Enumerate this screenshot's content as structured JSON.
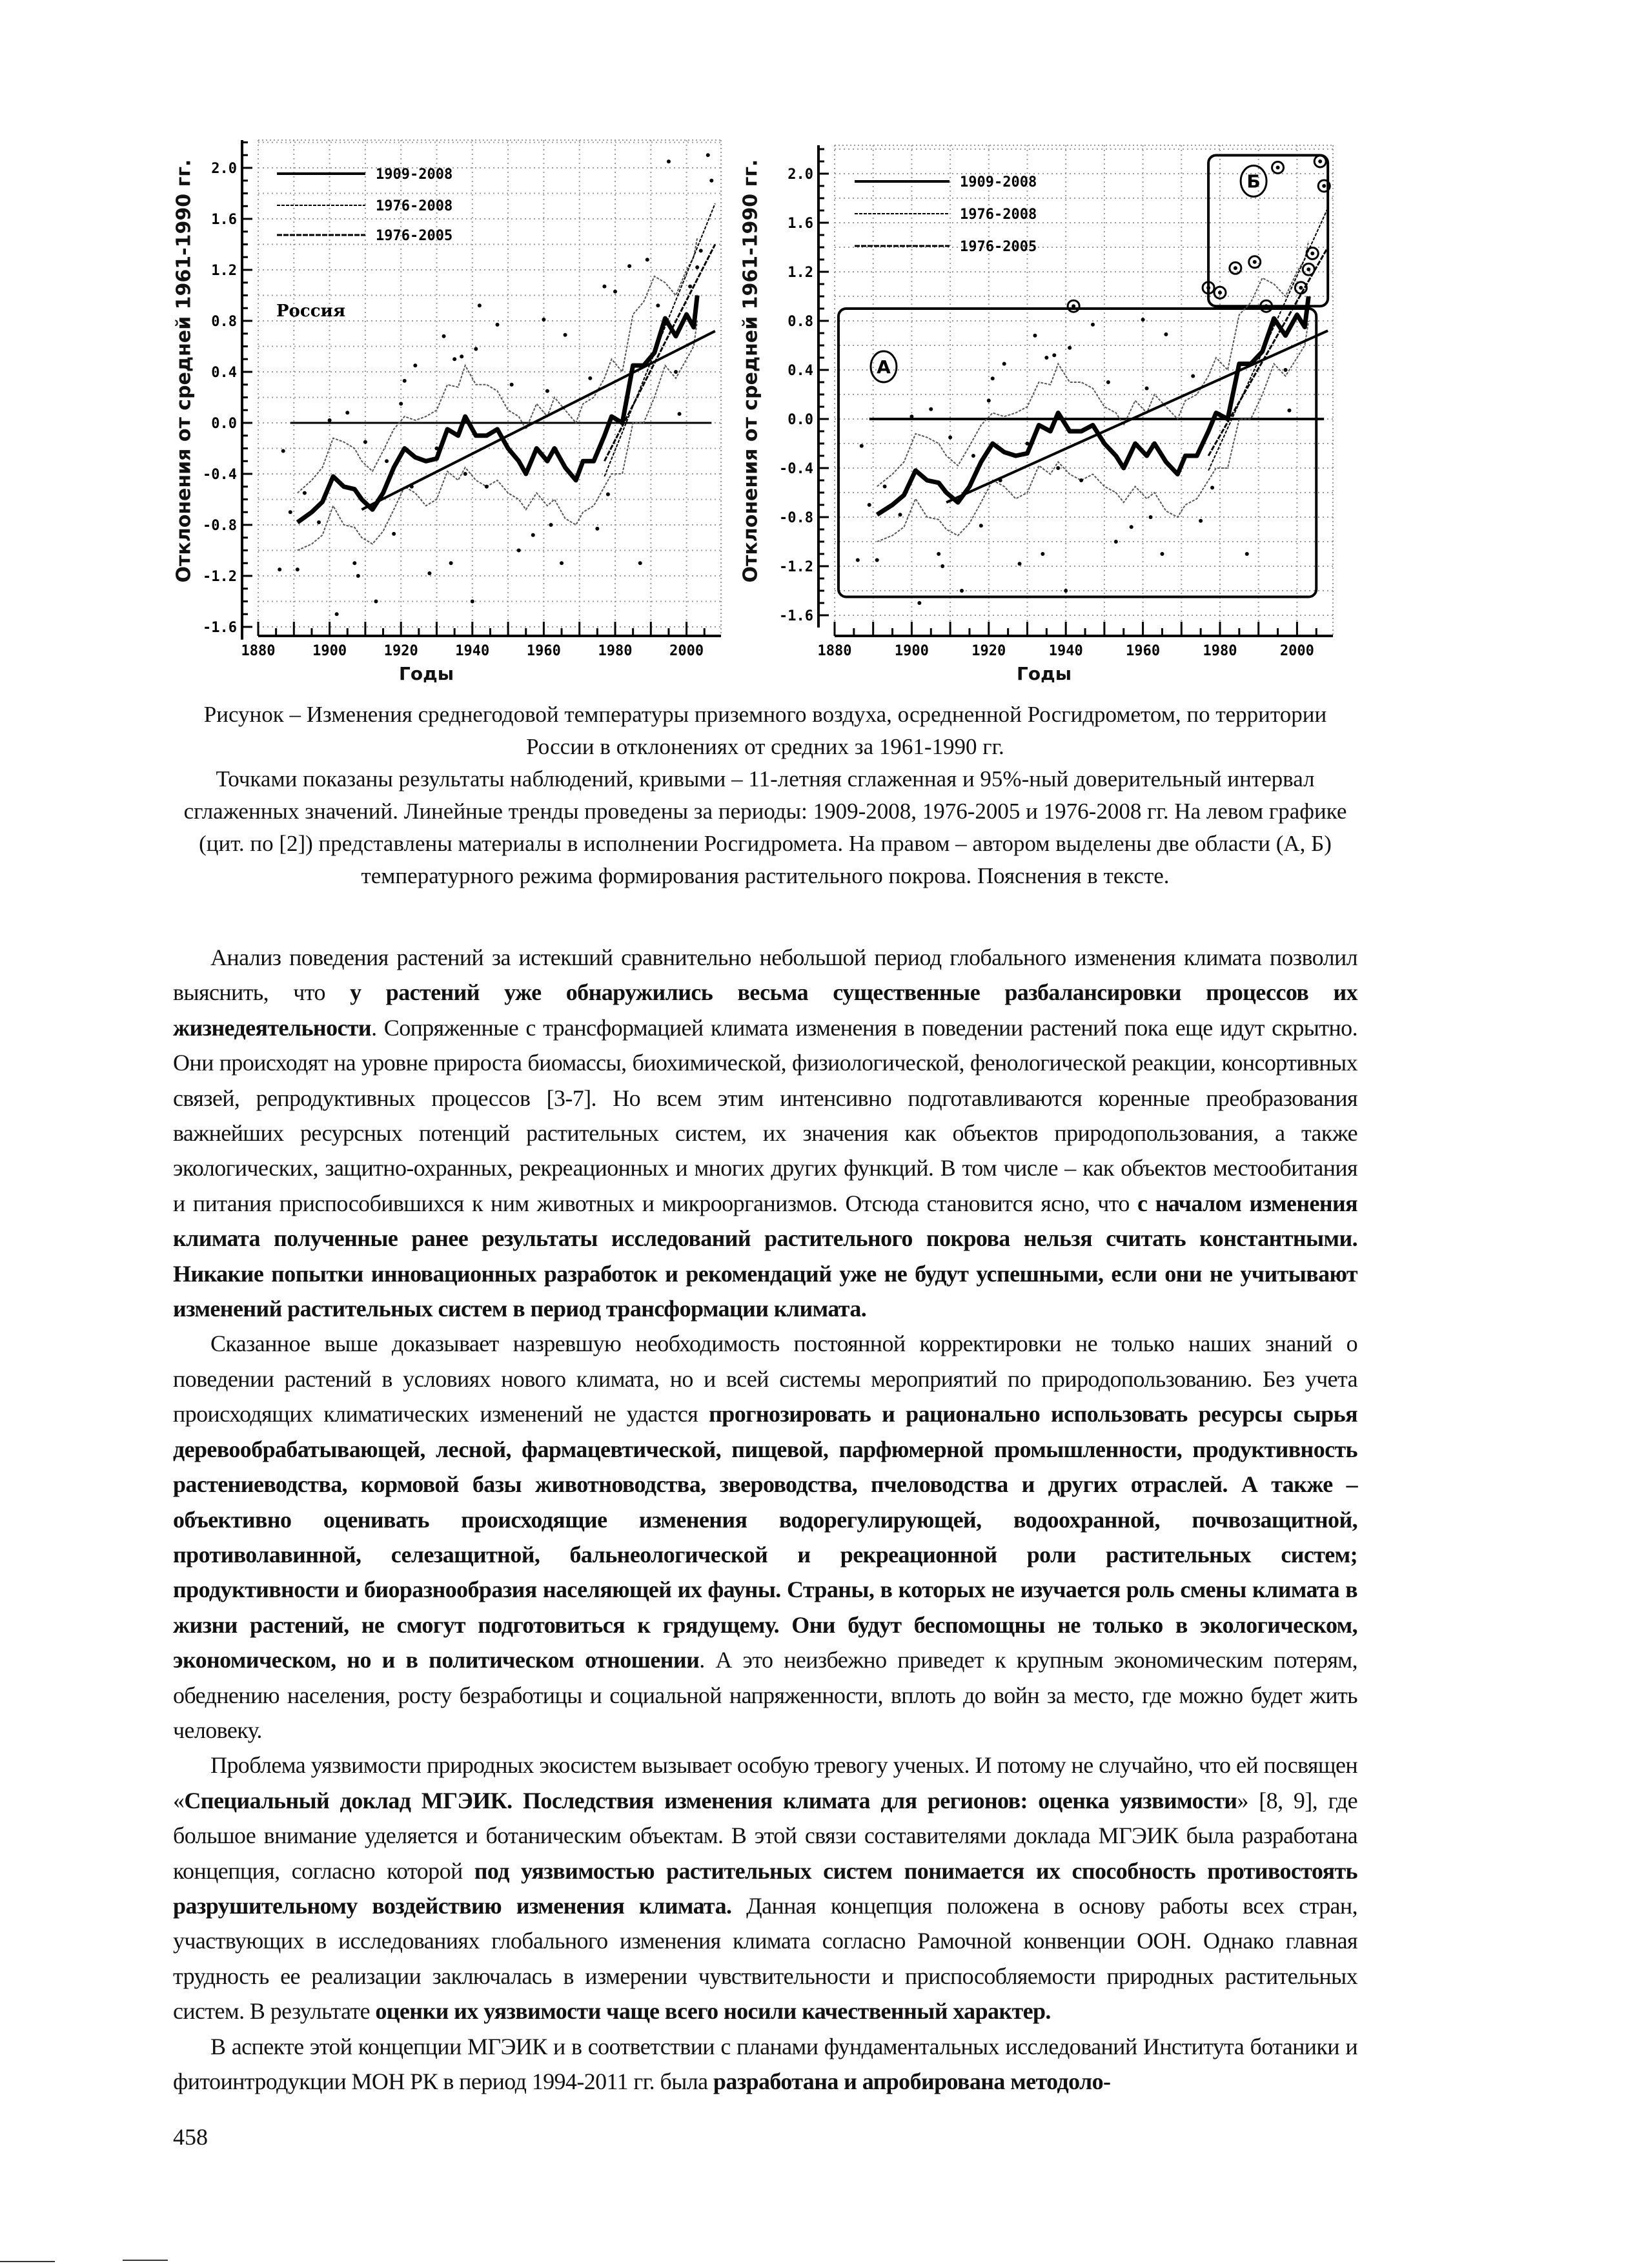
{
  "chart_data": [
    {
      "type": "line",
      "title": "",
      "xlabel": "Годы",
      "ylabel": "Отклонения от средней 1961-1990 гг.",
      "xlim": [
        1880,
        2009
      ],
      "ylim": [
        -1.6,
        2.0
      ],
      "x_ticks": [
        "1880",
        "1900",
        "1920",
        "1940",
        "1960",
        "1980",
        "2000"
      ],
      "y_ticks": [
        "2.0",
        "1.6",
        "1.2",
        "0.8",
        "0.4",
        "0.0",
        "-0.4",
        "-0.8",
        "-1.2",
        "-1.6"
      ],
      "grid": true,
      "legend_position": "top-left",
      "annotation": "Россия",
      "legend": [
        "1909-2008",
        "1976-2008",
        "1976-2005"
      ],
      "trends": [
        {
          "name": "1909-2008",
          "from": [
            1909,
            -0.68
          ],
          "to": [
            2008,
            0.72
          ]
        },
        {
          "name": "1976-2008",
          "from": [
            1977,
            -0.42
          ],
          "to": [
            2008,
            1.72
          ]
        },
        {
          "name": "1976-2005",
          "from": [
            1977,
            -0.3
          ],
          "to": [
            2008,
            1.4
          ]
        }
      ],
      "smoothed": {
        "x": [
          1891,
          1895,
          1898,
          1901,
          1904,
          1907,
          1909,
          1912,
          1915,
          1918,
          1921,
          1924,
          1927,
          1930,
          1933,
          1936,
          1938,
          1941,
          1944,
          1947,
          1950,
          1953,
          1955,
          1958,
          1961,
          1963,
          1966,
          1969,
          1971,
          1974,
          1977,
          1979,
          1982,
          1985,
          1988,
          1991,
          1994,
          1997,
          2000,
          2002,
          2003
        ],
        "y": [
          -0.78,
          -0.7,
          -0.62,
          -0.42,
          -0.5,
          -0.52,
          -0.6,
          -0.68,
          -0.55,
          -0.35,
          -0.2,
          -0.27,
          -0.3,
          -0.28,
          -0.05,
          -0.1,
          0.05,
          -0.1,
          -0.1,
          -0.05,
          -0.2,
          -0.3,
          -0.4,
          -0.2,
          -0.3,
          -0.2,
          -0.35,
          -0.45,
          -0.3,
          -0.3,
          -0.1,
          0.05,
          0.0,
          0.45,
          0.45,
          0.55,
          0.82,
          0.68,
          0.85,
          0.75,
          1.0
        ]
      },
      "ci_upper": [
        -0.55,
        -0.45,
        -0.35,
        -0.12,
        -0.15,
        -0.2,
        -0.3,
        -0.38,
        -0.22,
        -0.05,
        0.05,
        0.02,
        0.05,
        0.1,
        0.3,
        0.28,
        0.45,
        0.3,
        0.3,
        0.25,
        0.1,
        0.05,
        -0.05,
        0.15,
        0.05,
        0.2,
        0.1,
        0.0,
        0.15,
        0.2,
        0.35,
        0.5,
        0.4,
        0.85,
        0.95,
        1.15,
        1.1,
        1.0,
        1.2,
        1.3,
        1.45
      ],
      "ci_lower": [
        -1.0,
        -0.95,
        -0.88,
        -0.65,
        -0.8,
        -0.82,
        -0.9,
        -0.95,
        -0.85,
        -0.68,
        -0.5,
        -0.55,
        -0.65,
        -0.6,
        -0.38,
        -0.45,
        -0.35,
        -0.45,
        -0.5,
        -0.45,
        -0.55,
        -0.6,
        -0.68,
        -0.55,
        -0.65,
        -0.6,
        -0.75,
        -0.8,
        -0.7,
        -0.65,
        -0.5,
        -0.4,
        -0.4,
        0.0,
        0.0,
        0.2,
        0.45,
        0.35,
        0.5,
        0.6,
        0.8
      ],
      "points": [
        [
          1886,
          -1.15
        ],
        [
          1887,
          -0.22
        ],
        [
          1889,
          -0.7
        ],
        [
          1891,
          -1.15
        ],
        [
          1893,
          -0.55
        ],
        [
          1897,
          -0.78
        ],
        [
          1900,
          0.02
        ],
        [
          1902,
          -1.5
        ],
        [
          1905,
          0.08
        ],
        [
          1907,
          -1.1
        ],
        [
          1908,
          -1.2
        ],
        [
          1910,
          -0.15
        ],
        [
          1913,
          -1.4
        ],
        [
          1916,
          -0.3
        ],
        [
          1918,
          -0.87
        ],
        [
          1920,
          0.15
        ],
        [
          1921,
          0.33
        ],
        [
          1923,
          -0.5
        ],
        [
          1924,
          0.45
        ],
        [
          1928,
          -1.18
        ],
        [
          1930,
          -0.2
        ],
        [
          1932,
          0.68
        ],
        [
          1934,
          -1.1
        ],
        [
          1935,
          0.5
        ],
        [
          1937,
          0.52
        ],
        [
          1938,
          -0.4
        ],
        [
          1940,
          -1.4
        ],
        [
          1941,
          0.58
        ],
        [
          1942,
          0.92
        ],
        [
          1944,
          -0.5
        ],
        [
          1947,
          0.77
        ],
        [
          1951,
          0.3
        ],
        [
          1953,
          -1.0
        ],
        [
          1957,
          -0.88
        ],
        [
          1960,
          0.81
        ],
        [
          1961,
          0.25
        ],
        [
          1962,
          -0.8
        ],
        [
          1965,
          -1.1
        ],
        [
          1966,
          0.69
        ],
        [
          1973,
          0.35
        ],
        [
          1975,
          -0.83
        ],
        [
          1977,
          1.07
        ],
        [
          1978,
          -0.56
        ],
        [
          1980,
          1.03
        ],
        [
          1984,
          1.23
        ],
        [
          1987,
          -1.1
        ],
        [
          1989,
          1.28
        ],
        [
          1992,
          0.92
        ],
        [
          1995,
          2.05
        ],
        [
          1997,
          0.4
        ],
        [
          1998,
          0.07
        ],
        [
          2001,
          1.07
        ],
        [
          2003,
          1.22
        ],
        [
          2004,
          1.35
        ],
        [
          2006,
          2.1
        ],
        [
          2007,
          1.9
        ]
      ]
    },
    {
      "type": "line",
      "title": "",
      "xlabel": "Годы",
      "ylabel": "Отклонения от средней 1961-1990 гг.",
      "xlim": [
        1880,
        2009
      ],
      "ylim": [
        -1.6,
        2.0
      ],
      "x_ticks": [
        "1880",
        "1900",
        "1920",
        "1940",
        "1960",
        "1980",
        "2000"
      ],
      "y_ticks": [
        "2.0",
        "1.6",
        "1.2",
        "0.8",
        "0.4",
        "0.0",
        "-0.4",
        "-0.8",
        "-1.2",
        "-1.6"
      ],
      "grid": true,
      "legend_position": "top-left",
      "legend": [
        "1909-2008",
        "1976-2008",
        "1976-2005"
      ],
      "regions": [
        {
          "label": "А",
          "x": [
            1881,
            2005
          ],
          "y": [
            -1.45,
            0.9
          ]
        },
        {
          "label": "Б",
          "x": [
            1977,
            2008
          ],
          "y": [
            0.92,
            2.15
          ]
        }
      ],
      "same_series_as_left": true
    }
  ],
  "caption": {
    "line1": "Рисунок – Изменения среднегодовой температуры приземного воздуха, осредненной Росгидрометом, по территории России в отклонениях от средних за 1961-1990 гг.",
    "line2": "Точками показаны результаты наблюдений, кривыми – 11-летняя сглаженная и 95%-ный доверительный интервал сглаженных значений. Линейные тренды проведены за периоды: 1909-2008, 1976-2005 и 1976-2008 гг. На левом графике (цит. по [2]) представлены материалы в исполнении Росгидромета. На правом – автором выделены две области (А, Б) температурного режима формирования растительного покрова. Пояснения в тексте."
  },
  "paragraphs": [
    [
      {
        "b": false,
        "t": "Анализ поведения растений за истекший сравнительно небольшой период глобального изменения климата позволил выяснить, что "
      },
      {
        "b": true,
        "t": "у растений  уже обнаружились весьма существенные разбалансировки процессов их жизнедеятельности"
      },
      {
        "b": false,
        "t": ". Сопряженные с трансформацией климата изменения в поведении растений пока еще идут скрытно. Они происходят на уровне прироста биомассы, биохимической, физиологической, фенологической реакции, консортивных связей, репродуктивных процессов [3-7]. Но всем этим интенсивно подготавливаются коренные преобразования важнейших ресурсных потенций растительных систем, их значения как объектов природопользования, а также экологических, защитно-охранных, рекреационных и многих других функций. В том числе – как объектов местообитания и питания приспособившихся к ним животных и микроорганизмов. Отсюда становится ясно, что "
      },
      {
        "b": true,
        "t": "с началом изменения климата полученные ранее результаты исследований растительного покрова нельзя считать константными. Никакие попытки инновационных разработок и рекомендаций уже не будут успешными, если они не учитывают изменений растительных систем в период трансформации климата."
      }
    ],
    [
      {
        "b": false,
        "t": "Сказанное выше доказывает назревшую необходимость постоянной корректировки не только наших знаний о поведении растений в условиях нового климата, но и всей системы мероприятий по природопользованию. Без учета происходящих климатических изменений не удастся "
      },
      {
        "b": true,
        "t": "прогнозировать и рационально использовать ресурсы сырья деревообрабатывающей, лесной, фармацевтической, пищевой, парфюмерной промышленности, продуктивность растениеводства, кормовой базы животноводства, звероводства, пчеловодства и других отраслей. А также – объективно оценивать происходящие изменения водорегулирующей, водоохранной, почвозащитной, противолавинной, селезащитной, бальнеологической и рекреационной роли растительных систем; продуктивности и биоразнообразия населяющей их фауны. Страны, в которых не изучается роль смены климата в жизни растений, не смогут подготовиться к грядущему. Они будут беспомощны не только в экологическом, экономическом, но и в политическом отношении"
      },
      {
        "b": false,
        "t": ". А это неизбежно приведет к крупным экономическим потерям, обеднению населения, росту безработицы и социальной напряженности, вплоть до войн за место, где можно будет жить человеку."
      }
    ],
    [
      {
        "b": false,
        "t": "Проблема уязвимости природных экосистем вызывает особую тревогу ученых. И потому не случайно, что ей посвящен «"
      },
      {
        "b": true,
        "t": "Специальный доклад МГЭИК. Последствия изменения климата для регионов: оценка уязвимости"
      },
      {
        "b": false,
        "t": "» [8, 9], где большое внимание уделяется и ботаническим объектам. В этой связи составителями доклада МГЭИК была разработана концепция, согласно которой "
      },
      {
        "b": true,
        "t": "под уязвимостью растительных систем понимается их способность противостоять разрушительному воздействию изменения климата."
      },
      {
        "b": false,
        "t": " Данная концепция положена в основу работы всех стран, участвующих в исследованиях глобального изменения климата согласно Рамочной конвенции ООН. Однако главная трудность ее реализации заключалась в измерении чувствительности и приспособляемости природных растительных систем. В результате "
      },
      {
        "b": true,
        "t": "оценки их уязвимости чаще всего носили качественный характер."
      }
    ],
    [
      {
        "b": false,
        "t": "В аспекте этой концепции МГЭИК и в соответствии с планами фундаментальных исследований Института ботаники и фитоинтродукции МОН РК в период 1994-2011 гг. была "
      },
      {
        "b": true,
        "t": "разработана и апробирована методоло-"
      }
    ]
  ],
  "page_number": "458"
}
